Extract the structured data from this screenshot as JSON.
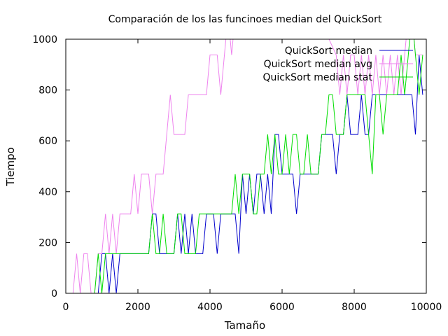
{
  "chart_data": {
    "type": "line",
    "title": "Comparación de los las funcinoes median del QuickSort",
    "xlabel": "Tamaño",
    "ylabel": "Tiempo",
    "xlim": [
      0,
      10000
    ],
    "ylim": [
      0,
      1000
    ],
    "x_ticks": [
      0,
      2000,
      4000,
      6000,
      8000,
      10000
    ],
    "y_ticks": [
      0,
      200,
      400,
      600,
      800,
      1000
    ],
    "x_tick_labels": [
      "0",
      "2000",
      "4000",
      "6000",
      "8000",
      "10000"
    ],
    "y_tick_labels": [
      "0",
      "200",
      "400",
      "600",
      "800",
      "1000"
    ],
    "grid": false,
    "legend_position": "top-right",
    "series": [
      {
        "name": "QuickSort median",
        "color": "#0000cc",
        "points": [
          [
            800,
            0
          ],
          [
            900,
            0
          ],
          [
            1000,
            156
          ],
          [
            1100,
            156
          ],
          [
            1200,
            0
          ],
          [
            1300,
            156
          ],
          [
            1400,
            0
          ],
          [
            1500,
            156
          ],
          [
            1600,
            156
          ],
          [
            1700,
            156
          ],
          [
            1800,
            156
          ],
          [
            1900,
            156
          ],
          [
            2000,
            156
          ],
          [
            2100,
            156
          ],
          [
            2200,
            156
          ],
          [
            2300,
            156
          ],
          [
            2400,
            312
          ],
          [
            2500,
            312
          ],
          [
            2600,
            156
          ],
          [
            2700,
            156
          ],
          [
            2800,
            156
          ],
          [
            2900,
            156
          ],
          [
            3000,
            156
          ],
          [
            3100,
            312
          ],
          [
            3200,
            156
          ],
          [
            3300,
            312
          ],
          [
            3400,
            156
          ],
          [
            3500,
            312
          ],
          [
            3600,
            156
          ],
          [
            3700,
            156
          ],
          [
            3800,
            156
          ],
          [
            3900,
            312
          ],
          [
            4000,
            312
          ],
          [
            4100,
            312
          ],
          [
            4200,
            156
          ],
          [
            4300,
            312
          ],
          [
            4400,
            312
          ],
          [
            4500,
            312
          ],
          [
            4600,
            312
          ],
          [
            4700,
            312
          ],
          [
            4800,
            156
          ],
          [
            4900,
            469
          ],
          [
            5000,
            312
          ],
          [
            5100,
            469
          ],
          [
            5200,
            312
          ],
          [
            5300,
            469
          ],
          [
            5400,
            469
          ],
          [
            5500,
            312
          ],
          [
            5600,
            469
          ],
          [
            5700,
            312
          ],
          [
            5800,
            625
          ],
          [
            5900,
            625
          ],
          [
            6000,
            469
          ],
          [
            6100,
            469
          ],
          [
            6200,
            469
          ],
          [
            6300,
            469
          ],
          [
            6400,
            312
          ],
          [
            6500,
            469
          ],
          [
            6600,
            469
          ],
          [
            6700,
            469
          ],
          [
            6800,
            469
          ],
          [
            6900,
            469
          ],
          [
            7000,
            469
          ],
          [
            7100,
            625
          ],
          [
            7200,
            625
          ],
          [
            7300,
            625
          ],
          [
            7400,
            625
          ],
          [
            7500,
            469
          ],
          [
            7600,
            625
          ],
          [
            7700,
            625
          ],
          [
            7800,
            781
          ],
          [
            7900,
            625
          ],
          [
            8000,
            625
          ],
          [
            8100,
            625
          ],
          [
            8200,
            781
          ],
          [
            8300,
            625
          ],
          [
            8400,
            625
          ],
          [
            8500,
            781
          ],
          [
            8600,
            781
          ],
          [
            8700,
            781
          ],
          [
            8800,
            781
          ],
          [
            8900,
            781
          ],
          [
            9000,
            781
          ],
          [
            9100,
            781
          ],
          [
            9200,
            781
          ],
          [
            9300,
            781
          ],
          [
            9400,
            781
          ],
          [
            9500,
            781
          ],
          [
            9600,
            781
          ],
          [
            9700,
            625
          ],
          [
            9800,
            938
          ],
          [
            9900,
            781
          ]
        ]
      },
      {
        "name": "QuickSort median avg",
        "color": "#ee82ee",
        "points": [
          [
            200,
            0
          ],
          [
            300,
            156
          ],
          [
            400,
            0
          ],
          [
            500,
            156
          ],
          [
            600,
            156
          ],
          [
            700,
            0
          ],
          [
            800,
            0
          ],
          [
            900,
            156
          ],
          [
            1000,
            156
          ],
          [
            1100,
            312
          ],
          [
            1200,
            156
          ],
          [
            1300,
            312
          ],
          [
            1400,
            156
          ],
          [
            1500,
            312
          ],
          [
            1600,
            312
          ],
          [
            1700,
            312
          ],
          [
            1800,
            312
          ],
          [
            1900,
            469
          ],
          [
            2000,
            312
          ],
          [
            2100,
            469
          ],
          [
            2200,
            469
          ],
          [
            2300,
            469
          ],
          [
            2400,
            312
          ],
          [
            2500,
            469
          ],
          [
            2600,
            469
          ],
          [
            2700,
            469
          ],
          [
            2800,
            625
          ],
          [
            2900,
            781
          ],
          [
            3000,
            625
          ],
          [
            3100,
            625
          ],
          [
            3200,
            625
          ],
          [
            3300,
            625
          ],
          [
            3400,
            781
          ],
          [
            3500,
            781
          ],
          [
            3600,
            781
          ],
          [
            3700,
            781
          ],
          [
            3800,
            781
          ],
          [
            3900,
            781
          ],
          [
            4000,
            938
          ],
          [
            4100,
            938
          ],
          [
            4200,
            938
          ],
          [
            4300,
            781
          ],
          [
            4400,
            938
          ],
          [
            4500,
            1094
          ],
          [
            4600,
            938
          ],
          [
            4700,
            1094
          ],
          [
            4800,
            1094
          ],
          [
            4900,
            1094
          ],
          [
            5000,
            1094
          ],
          [
            5500,
            1094
          ],
          [
            6000,
            1094
          ],
          [
            6500,
            1094
          ],
          [
            7000,
            1094
          ],
          [
            7500,
            938
          ],
          [
            7600,
            781
          ],
          [
            7700,
            938
          ],
          [
            7800,
            781
          ],
          [
            7900,
            938
          ],
          [
            8000,
            938
          ],
          [
            8100,
            781
          ],
          [
            8200,
            938
          ],
          [
            8300,
            781
          ],
          [
            8400,
            938
          ],
          [
            8500,
            781
          ],
          [
            8600,
            938
          ],
          [
            8700,
            781
          ],
          [
            8800,
            938
          ],
          [
            8900,
            781
          ],
          [
            9000,
            938
          ],
          [
            9100,
            781
          ],
          [
            9200,
            938
          ],
          [
            9300,
            781
          ],
          [
            9400,
            938
          ],
          [
            9500,
            1094
          ],
          [
            9600,
            1094
          ],
          [
            9700,
            938
          ],
          [
            9800,
            938
          ],
          [
            9900,
            938
          ]
        ]
      },
      {
        "name": "QuickSort median stat",
        "color": "#00dd00",
        "points": [
          [
            800,
            0
          ],
          [
            900,
            156
          ],
          [
            1000,
            0
          ],
          [
            1100,
            156
          ],
          [
            1200,
            156
          ],
          [
            1300,
            156
          ],
          [
            1400,
            156
          ],
          [
            1500,
            156
          ],
          [
            1600,
            156
          ],
          [
            1700,
            156
          ],
          [
            1800,
            156
          ],
          [
            1900,
            156
          ],
          [
            2000,
            156
          ],
          [
            2100,
            156
          ],
          [
            2200,
            156
          ],
          [
            2300,
            156
          ],
          [
            2400,
            312
          ],
          [
            2500,
            156
          ],
          [
            2600,
            156
          ],
          [
            2700,
            312
          ],
          [
            2800,
            156
          ],
          [
            2900,
            156
          ],
          [
            3000,
            156
          ],
          [
            3100,
            312
          ],
          [
            3200,
            312
          ],
          [
            3300,
            156
          ],
          [
            3400,
            156
          ],
          [
            3500,
            156
          ],
          [
            3600,
            156
          ],
          [
            3700,
            312
          ],
          [
            3800,
            312
          ],
          [
            3900,
            312
          ],
          [
            4000,
            312
          ],
          [
            4100,
            312
          ],
          [
            4200,
            312
          ],
          [
            4300,
            312
          ],
          [
            4400,
            312
          ],
          [
            4500,
            312
          ],
          [
            4600,
            312
          ],
          [
            4700,
            469
          ],
          [
            4800,
            312
          ],
          [
            4900,
            469
          ],
          [
            5000,
            469
          ],
          [
            5100,
            469
          ],
          [
            5200,
            312
          ],
          [
            5300,
            312
          ],
          [
            5400,
            469
          ],
          [
            5500,
            469
          ],
          [
            5600,
            625
          ],
          [
            5700,
            469
          ],
          [
            5800,
            625
          ],
          [
            5900,
            469
          ],
          [
            6000,
            469
          ],
          [
            6100,
            625
          ],
          [
            6200,
            469
          ],
          [
            6300,
            625
          ],
          [
            6400,
            625
          ],
          [
            6500,
            469
          ],
          [
            6600,
            469
          ],
          [
            6700,
            625
          ],
          [
            6800,
            469
          ],
          [
            6900,
            469
          ],
          [
            7000,
            469
          ],
          [
            7100,
            625
          ],
          [
            7200,
            625
          ],
          [
            7300,
            781
          ],
          [
            7400,
            781
          ],
          [
            7500,
            625
          ],
          [
            7600,
            625
          ],
          [
            7700,
            625
          ],
          [
            7800,
            781
          ],
          [
            7900,
            781
          ],
          [
            8000,
            781
          ],
          [
            8100,
            781
          ],
          [
            8200,
            781
          ],
          [
            8300,
            781
          ],
          [
            8400,
            625
          ],
          [
            8500,
            469
          ],
          [
            8600,
            781
          ],
          [
            8700,
            781
          ],
          [
            8800,
            625
          ],
          [
            8900,
            781
          ],
          [
            9000,
            781
          ],
          [
            9100,
            781
          ],
          [
            9200,
            781
          ],
          [
            9300,
            938
          ],
          [
            9400,
            781
          ],
          [
            9500,
            938
          ],
          [
            9600,
            1094
          ],
          [
            9700,
            938
          ],
          [
            9800,
            781
          ],
          [
            9900,
            938
          ]
        ]
      }
    ]
  }
}
